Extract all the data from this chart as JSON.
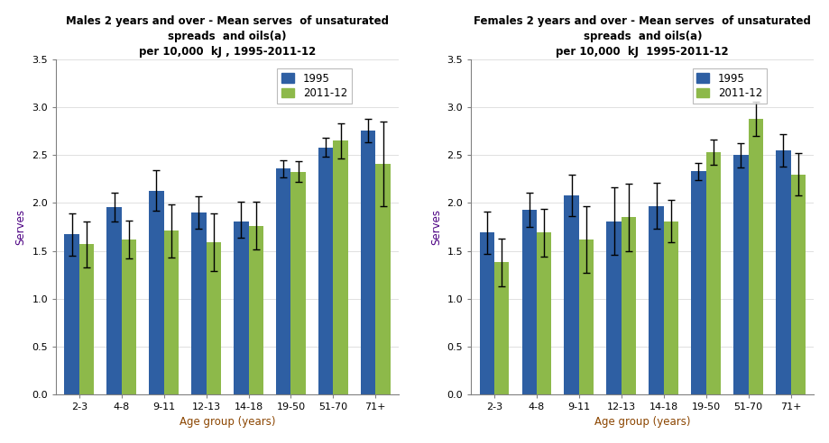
{
  "age_groups": [
    "2-3",
    "4-8",
    "9-11",
    "12-13",
    "14-18",
    "19-50",
    "51-70",
    "71+"
  ],
  "males_1995_means": [
    1.67,
    1.96,
    2.13,
    1.9,
    1.81,
    2.36,
    2.58,
    2.76
  ],
  "males_2011_means": [
    1.57,
    1.62,
    1.71,
    1.59,
    1.76,
    2.32,
    2.65,
    2.41
  ],
  "males_1995_err_up": [
    0.22,
    0.15,
    0.21,
    0.17,
    0.2,
    0.09,
    0.1,
    0.12
  ],
  "males_1995_err_down": [
    0.22,
    0.15,
    0.21,
    0.17,
    0.17,
    0.09,
    0.1,
    0.12
  ],
  "males_2011_err_up": [
    0.24,
    0.2,
    0.28,
    0.3,
    0.25,
    0.12,
    0.18,
    0.44
  ],
  "males_2011_err_down": [
    0.24,
    0.2,
    0.28,
    0.3,
    0.25,
    0.1,
    0.18,
    0.44
  ],
  "females_1995_means": [
    1.69,
    1.93,
    2.08,
    1.81,
    1.97,
    2.33,
    2.5,
    2.55
  ],
  "females_2011_means": [
    1.38,
    1.69,
    1.62,
    1.85,
    1.81,
    2.53,
    2.88,
    2.3
  ],
  "females_1995_err_up": [
    0.22,
    0.18,
    0.22,
    0.35,
    0.24,
    0.09,
    0.13,
    0.17
  ],
  "females_1995_err_down": [
    0.22,
    0.18,
    0.22,
    0.35,
    0.24,
    0.09,
    0.13,
    0.17
  ],
  "females_2011_err_up": [
    0.25,
    0.25,
    0.35,
    0.35,
    0.22,
    0.13,
    0.18,
    0.22
  ],
  "females_2011_err_down": [
    0.25,
    0.25,
    0.35,
    0.35,
    0.22,
    0.13,
    0.18,
    0.22
  ],
  "color_1995": "#2E5FA3",
  "color_2011": "#8DB94A",
  "bar_width": 0.35,
  "title_males": "Males 2 years and over - Mean serves  of unsaturated\nspreads  and oils(a)\nper 10,000  kJ , 1995-2011-12",
  "title_females": "Females 2 years and over - Mean serves  of unsaturated\nspreads  and oils(a)\nper 10,000  kJ  1995-2011-12",
  "ylabel": "Serves",
  "xlabel": "Age group (years)",
  "ylim": [
    0,
    3.5
  ],
  "yticks": [
    0.0,
    0.5,
    1.0,
    1.5,
    2.0,
    2.5,
    3.0,
    3.5
  ],
  "legend_labels": [
    "1995",
    "2011-12"
  ],
  "title_fontsize": 8.5,
  "axis_label_fontsize": 8.5,
  "tick_fontsize": 8,
  "legend_fontsize": 8.5,
  "title_color": "#000000",
  "ylabel_color": "#4B0082",
  "xlabel_color": "#8B4500"
}
